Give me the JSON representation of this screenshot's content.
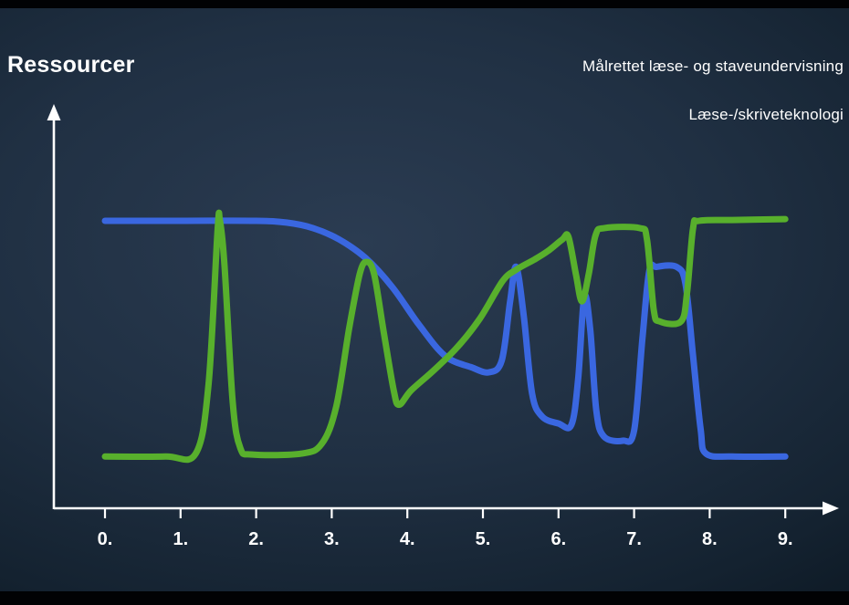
{
  "page": {
    "ylabel": "Ressourcer",
    "legend": {
      "items": [
        {
          "label": "Målrettet læse- og staveundervisning"
        },
        {
          "label": "Læse-/skriveteknologi"
        }
      ]
    }
  },
  "colors": {
    "background_center": "#2b3c52",
    "background_edge": "#060d14",
    "axis": "#ffffff",
    "text": "#ffffff",
    "blue_series": "#3a67e0",
    "green_series": "#58b02c"
  },
  "chart_data": {
    "type": "line",
    "title": "",
    "xlabel": "",
    "ylabel": "Ressourcer",
    "grid": false,
    "legend_position": "top-right",
    "x_tick_labels": [
      "0.",
      "1.",
      "2.",
      "3.",
      "4.",
      "5.",
      "6.",
      "7.",
      "8.",
      "9."
    ],
    "x_range": [
      0,
      9
    ],
    "y_range": [
      0,
      105
    ],
    "series": [
      {
        "id": "maalrettet",
        "name": "Målrettet læse- og staveundervisning",
        "color": "#3a67e0",
        "points": [
          [
            0,
            100
          ],
          [
            1,
            100
          ],
          [
            2,
            100
          ],
          [
            2.4,
            99.4
          ],
          [
            2.75,
            97.5
          ],
          [
            3.1,
            93.5
          ],
          [
            3.45,
            87
          ],
          [
            3.8,
            77
          ],
          [
            4.15,
            64
          ],
          [
            4.5,
            53
          ],
          [
            4.85,
            49
          ],
          [
            5.08,
            47.3
          ],
          [
            5.25,
            51.5
          ],
          [
            5.36,
            72
          ],
          [
            5.44,
            84
          ],
          [
            5.54,
            67
          ],
          [
            5.65,
            40
          ],
          [
            5.78,
            32
          ],
          [
            6.0,
            29.5
          ],
          [
            6.17,
            29
          ],
          [
            6.26,
            45
          ],
          [
            6.34,
            73.5
          ],
          [
            6.42,
            62
          ],
          [
            6.5,
            34
          ],
          [
            6.6,
            25
          ],
          [
            6.85,
            23.5
          ],
          [
            7.0,
            27
          ],
          [
            7.11,
            59
          ],
          [
            7.2,
            82.5
          ],
          [
            7.3,
            84
          ],
          [
            7.56,
            84
          ],
          [
            7.68,
            78
          ],
          [
            7.78,
            53
          ],
          [
            7.88,
            27.5
          ],
          [
            7.95,
            19
          ],
          [
            8.3,
            18
          ],
          [
            9,
            18
          ]
        ]
      },
      {
        "id": "teknologi",
        "name": "Læse-/skriveteknologi",
        "color": "#58b02c",
        "points": [
          [
            0,
            18
          ],
          [
            0.8,
            18
          ],
          [
            1.2,
            19
          ],
          [
            1.37,
            43
          ],
          [
            1.49,
            97
          ],
          [
            1.52,
            100
          ],
          [
            1.58,
            85
          ],
          [
            1.69,
            37
          ],
          [
            1.79,
            21
          ],
          [
            1.95,
            18.7
          ],
          [
            2.6,
            19
          ],
          [
            2.87,
            22.5
          ],
          [
            3.06,
            35.5
          ],
          [
            3.23,
            62.5
          ],
          [
            3.37,
            81.5
          ],
          [
            3.46,
            85.7
          ],
          [
            3.56,
            81.5
          ],
          [
            3.69,
            61
          ],
          [
            3.82,
            41
          ],
          [
            3.89,
            36
          ],
          [
            4.05,
            41
          ],
          [
            4.35,
            48
          ],
          [
            4.66,
            56
          ],
          [
            4.96,
            66
          ],
          [
            5.26,
            79
          ],
          [
            5.44,
            83
          ],
          [
            5.68,
            86.5
          ],
          [
            5.86,
            89.5
          ],
          [
            6.05,
            93.5
          ],
          [
            6.13,
            94.5
          ],
          [
            6.23,
            81.5
          ],
          [
            6.31,
            72
          ],
          [
            6.4,
            81.5
          ],
          [
            6.49,
            95
          ],
          [
            6.61,
            97.5
          ],
          [
            7.07,
            97.5
          ],
          [
            7.17,
            93.5
          ],
          [
            7.26,
            69
          ],
          [
            7.34,
            65
          ],
          [
            7.62,
            65
          ],
          [
            7.7,
            75
          ],
          [
            7.78,
            97.5
          ],
          [
            7.86,
            100
          ],
          [
            8.3,
            100.3
          ],
          [
            9,
            100.6
          ]
        ]
      }
    ]
  }
}
